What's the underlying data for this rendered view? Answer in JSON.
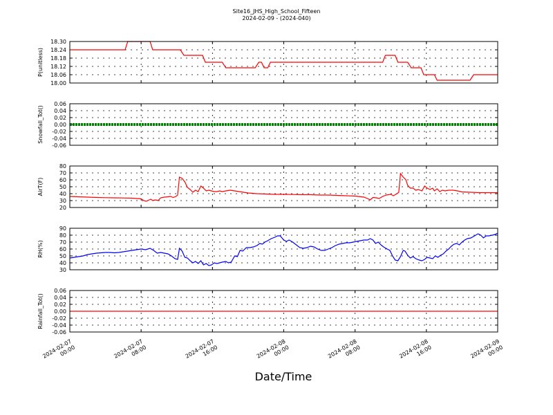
{
  "chart_data": {
    "type": "line",
    "title": "Site16_JHS_High_School_Fifteen",
    "subtitle": "2024-02-09 - (2024-040)",
    "xlabel": "Date/Time",
    "x_ticks": [
      {
        "l1": "2024-02-07",
        "l2": "00:00"
      },
      {
        "l1": "2024-02-07",
        "l2": "08:00"
      },
      {
        "l1": "2024-02-07",
        "l2": "16:00"
      },
      {
        "l1": "2024-02-08",
        "l2": "00:00"
      },
      {
        "l1": "2024-02-08",
        "l2": "08:00"
      },
      {
        "l1": "2024-02-08",
        "l2": "16:00"
      },
      {
        "l1": "2024-02-09",
        "l2": "00:00"
      }
    ],
    "x_range_hours": [
      0,
      48
    ],
    "grid": true,
    "panels": [
      {
        "ylabel": "P(unitless)",
        "ylim": [
          18.0,
          18.3
        ],
        "yticks": [
          "18.00",
          "18.06",
          "18.12",
          "18.18",
          "18.24",
          "18.30"
        ],
        "color": "#ff0000",
        "series": [
          [
            0,
            18.24
          ],
          [
            6.2,
            18.24
          ],
          [
            6.5,
            18.3
          ],
          [
            9,
            18.3
          ],
          [
            9.3,
            18.24
          ],
          [
            12.4,
            18.24
          ],
          [
            12.8,
            18.2
          ],
          [
            14.9,
            18.2
          ],
          [
            15.2,
            18.15
          ],
          [
            17.1,
            18.15
          ],
          [
            17.5,
            18.11
          ],
          [
            20.8,
            18.11
          ],
          [
            21.2,
            18.15
          ],
          [
            21.5,
            18.15
          ],
          [
            21.8,
            18.11
          ],
          [
            22.2,
            18.11
          ],
          [
            22.5,
            18.15
          ],
          [
            35.1,
            18.15
          ],
          [
            35.4,
            18.2
          ],
          [
            36.5,
            18.2
          ],
          [
            36.8,
            18.15
          ],
          [
            37.9,
            18.15
          ],
          [
            38.3,
            18.11
          ],
          [
            39.4,
            18.11
          ],
          [
            39.7,
            18.06
          ],
          [
            40.9,
            18.06
          ],
          [
            41.2,
            18.02
          ],
          [
            44.9,
            18.02
          ],
          [
            45.3,
            18.06
          ],
          [
            48,
            18.06
          ]
        ]
      },
      {
        "ylabel": "Snowfall_Tot()",
        "ylim": [
          -0.06,
          0.06
        ],
        "yticks": [
          "-0.06",
          "-0.04",
          "-0.02",
          "0.00",
          "0.02",
          "0.04",
          "0.06"
        ],
        "color": "#008000",
        "series": [
          [
            0,
            0
          ],
          [
            48,
            0
          ]
        ],
        "style": "thick"
      },
      {
        "ylabel": "AirT(F)",
        "ylim": [
          20,
          80
        ],
        "yticks": [
          "20",
          "30",
          "40",
          "50",
          "60",
          "70",
          "80"
        ],
        "color": "#ff0000",
        "series": [
          [
            0,
            36
          ],
          [
            1,
            35.5
          ],
          [
            2,
            35
          ],
          [
            3,
            34.5
          ],
          [
            4,
            34.2
          ],
          [
            5,
            34
          ],
          [
            6,
            33.8
          ],
          [
            7,
            33.5
          ],
          [
            7.5,
            33
          ],
          [
            8,
            32.5
          ],
          [
            8.3,
            30
          ],
          [
            8.6,
            29
          ],
          [
            8.9,
            31
          ],
          [
            9.1,
            32
          ],
          [
            9.3,
            30
          ],
          [
            9.6,
            31
          ],
          [
            9.9,
            30
          ],
          [
            10.2,
            34
          ],
          [
            10.6,
            35
          ],
          [
            11,
            35.5
          ],
          [
            11.3,
            36
          ],
          [
            11.6,
            34.5
          ],
          [
            11.9,
            36
          ],
          [
            12.1,
            38
          ],
          [
            12.3,
            64
          ],
          [
            12.6,
            62
          ],
          [
            12.9,
            57
          ],
          [
            13.2,
            49
          ],
          [
            13.5,
            46
          ],
          [
            13.8,
            42
          ],
          [
            14.1,
            45
          ],
          [
            14.4,
            43
          ],
          [
            14.7,
            51
          ],
          [
            15,
            48
          ],
          [
            15.3,
            44
          ],
          [
            15.6,
            45
          ],
          [
            15.9,
            44
          ],
          [
            16.2,
            43
          ],
          [
            16.5,
            43
          ],
          [
            16.8,
            44
          ],
          [
            17.1,
            43
          ],
          [
            17.5,
            44
          ],
          [
            18,
            45
          ],
          [
            18.5,
            44
          ],
          [
            19,
            43
          ],
          [
            20,
            41
          ],
          [
            21,
            40
          ],
          [
            22,
            39.5
          ],
          [
            23,
            39
          ],
          [
            24,
            39
          ],
          [
            25,
            38.8
          ],
          [
            26,
            38.5
          ],
          [
            27,
            38.5
          ],
          [
            28,
            38
          ],
          [
            29,
            38
          ],
          [
            30,
            37.5
          ],
          [
            31,
            37
          ],
          [
            32,
            36.5
          ],
          [
            33,
            35
          ],
          [
            33.4,
            33
          ],
          [
            33.7,
            31
          ],
          [
            34,
            34.5
          ],
          [
            34.4,
            34
          ],
          [
            34.7,
            33
          ],
          [
            35.1,
            36
          ],
          [
            35.5,
            38
          ],
          [
            36,
            39
          ],
          [
            36.3,
            37
          ],
          [
            36.7,
            40
          ],
          [
            36.9,
            42
          ],
          [
            37.1,
            69
          ],
          [
            37.4,
            64
          ],
          [
            37.7,
            60
          ],
          [
            37.9,
            52
          ],
          [
            38.2,
            48
          ],
          [
            38.5,
            48
          ],
          [
            38.8,
            45
          ],
          [
            39.1,
            46
          ],
          [
            39.5,
            44
          ],
          [
            39.8,
            51
          ],
          [
            40.1,
            48
          ],
          [
            40.4,
            46
          ],
          [
            40.7,
            48
          ],
          [
            40.9,
            44
          ],
          [
            41.2,
            47
          ],
          [
            41.5,
            43
          ],
          [
            41.8,
            45
          ],
          [
            42.1,
            44
          ],
          [
            42.5,
            45
          ],
          [
            43,
            45
          ],
          [
            43.5,
            44
          ],
          [
            44,
            42.5
          ],
          [
            45,
            42
          ],
          [
            46,
            41.5
          ],
          [
            47,
            41.5
          ],
          [
            48,
            41.5
          ]
        ]
      },
      {
        "ylabel": "RH(%)",
        "ylim": [
          30,
          90
        ],
        "yticks": [
          "30",
          "40",
          "50",
          "60",
          "70",
          "80",
          "90"
        ],
        "color": "#0000ff",
        "series": [
          [
            0,
            47
          ],
          [
            0.5,
            48
          ],
          [
            1,
            49
          ],
          [
            1.5,
            50
          ],
          [
            2,
            52
          ],
          [
            2.5,
            53
          ],
          [
            3,
            54
          ],
          [
            3.5,
            54.5
          ],
          [
            4,
            55
          ],
          [
            4.5,
            55
          ],
          [
            5,
            54.5
          ],
          [
            5.5,
            55
          ],
          [
            6,
            56
          ],
          [
            6.5,
            57
          ],
          [
            7,
            58
          ],
          [
            7.5,
            59
          ],
          [
            8,
            60
          ],
          [
            8.5,
            59
          ],
          [
            9,
            61
          ],
          [
            9.4,
            58
          ],
          [
            9.8,
            54
          ],
          [
            10.2,
            55
          ],
          [
            10.6,
            54
          ],
          [
            11,
            53
          ],
          [
            11.4,
            50
          ],
          [
            11.8,
            46
          ],
          [
            12.1,
            45
          ],
          [
            12.3,
            61
          ],
          [
            12.6,
            57
          ],
          [
            12.9,
            48
          ],
          [
            13.2,
            47
          ],
          [
            13.5,
            43
          ],
          [
            13.8,
            40
          ],
          [
            14.1,
            42
          ],
          [
            14.4,
            39
          ],
          [
            14.7,
            43
          ],
          [
            15,
            37
          ],
          [
            15.3,
            39
          ],
          [
            15.6,
            36
          ],
          [
            15.9,
            37
          ],
          [
            16.2,
            40
          ],
          [
            16.5,
            39
          ],
          [
            16.8,
            40
          ],
          [
            17.1,
            41
          ],
          [
            17.5,
            42
          ],
          [
            17.8,
            40
          ],
          [
            18.1,
            41
          ],
          [
            18.5,
            50
          ],
          [
            18.8,
            49
          ],
          [
            19.1,
            58
          ],
          [
            19.4,
            57
          ],
          [
            19.8,
            62
          ],
          [
            20.2,
            62
          ],
          [
            20.6,
            63
          ],
          [
            21,
            65
          ],
          [
            21.3,
            68
          ],
          [
            21.6,
            67
          ],
          [
            21.9,
            70
          ],
          [
            22.2,
            72
          ],
          [
            22.6,
            75
          ],
          [
            23,
            77
          ],
          [
            23.3,
            79
          ],
          [
            23.6,
            79
          ],
          [
            24,
            73
          ],
          [
            24.3,
            71
          ],
          [
            24.6,
            73
          ],
          [
            25,
            70
          ],
          [
            25.4,
            66
          ],
          [
            25.8,
            62
          ],
          [
            26.2,
            61
          ],
          [
            26.6,
            62
          ],
          [
            27,
            64
          ],
          [
            27.4,
            63
          ],
          [
            27.8,
            60
          ],
          [
            28.2,
            58
          ],
          [
            28.6,
            58
          ],
          [
            29,
            60
          ],
          [
            29.4,
            62
          ],
          [
            29.8,
            65
          ],
          [
            30.2,
            67
          ],
          [
            30.6,
            68
          ],
          [
            31,
            69
          ],
          [
            31.4,
            69
          ],
          [
            31.8,
            70
          ],
          [
            32.2,
            71
          ],
          [
            32.6,
            72
          ],
          [
            33,
            73
          ],
          [
            33.4,
            73
          ],
          [
            33.7,
            75
          ],
          [
            34,
            73
          ],
          [
            34.3,
            68
          ],
          [
            34.6,
            70
          ],
          [
            34.9,
            66
          ],
          [
            35.2,
            63
          ],
          [
            35.6,
            60
          ],
          [
            35.9,
            58
          ],
          [
            36.2,
            50
          ],
          [
            36.5,
            44
          ],
          [
            36.8,
            43
          ],
          [
            37.1,
            49
          ],
          [
            37.4,
            58
          ],
          [
            37.6,
            57
          ],
          [
            37.9,
            51
          ],
          [
            38.2,
            47
          ],
          [
            38.5,
            49
          ],
          [
            38.8,
            46
          ],
          [
            39.2,
            44
          ],
          [
            39.5,
            43
          ],
          [
            39.8,
            45
          ],
          [
            40.1,
            48
          ],
          [
            40.4,
            47
          ],
          [
            40.7,
            46
          ],
          [
            41,
            50
          ],
          [
            41.3,
            48
          ],
          [
            41.6,
            51
          ],
          [
            41.9,
            53
          ],
          [
            42.2,
            57
          ],
          [
            42.5,
            60
          ],
          [
            42.8,
            64
          ],
          [
            43.1,
            67
          ],
          [
            43.4,
            68
          ],
          [
            43.7,
            66
          ],
          [
            44,
            70
          ],
          [
            44.3,
            73
          ],
          [
            44.6,
            75
          ],
          [
            45,
            76
          ],
          [
            45.4,
            79
          ],
          [
            45.8,
            82
          ],
          [
            46.1,
            80
          ],
          [
            46.4,
            76
          ],
          [
            46.7,
            79
          ],
          [
            47,
            79
          ],
          [
            47.4,
            80
          ],
          [
            47.7,
            81
          ],
          [
            48,
            83
          ]
        ]
      },
      {
        "ylabel": "Rainfall_Tot()",
        "ylim": [
          -0.06,
          0.06
        ],
        "yticks": [
          "-0.06",
          "-0.04",
          "-0.02",
          "0.00",
          "0.02",
          "0.04",
          "0.06"
        ],
        "color": "#ff0000",
        "series": [
          [
            0,
            0
          ],
          [
            48,
            0
          ]
        ]
      }
    ]
  }
}
